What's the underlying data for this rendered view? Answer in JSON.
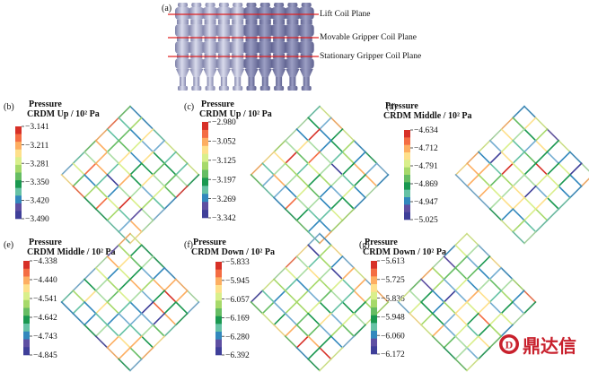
{
  "colors": {
    "grid_stroke": "#555555",
    "coil_plane_line": "#e02020",
    "cylinder_light": "#c9cbe2",
    "cylinder_dark": "#7d80a8",
    "watermark": "#c8202c",
    "colorbar": [
      "#d73027",
      "#f46d43",
      "#fdae61",
      "#fee08b",
      "#d9ef8b",
      "#a6d96a",
      "#66bd63",
      "#1a9850",
      "#66c2a5",
      "#3288bd",
      "#5e4fa2",
      "#3f3f99"
    ]
  },
  "panel_a": {
    "label": "(a)",
    "coil_planes": [
      "Lift Coil Plane",
      "Movable Gripper Coil Plane",
      "Stationary Gripper Coil Plane"
    ]
  },
  "panels": [
    {
      "label": "(b)",
      "title_line1": "Pressure",
      "title_line2": "CRDM Up / 10² Pa",
      "ticks": [
        "−3.141",
        "−3.211",
        "−3.281",
        "−3.350",
        "−3.420",
        "−3.490"
      ]
    },
    {
      "label": "(c)",
      "title_line1": "Pressure",
      "title_line2": "CRDM Up / 10² Pa",
      "ticks": [
        "−2.980",
        "−3.052",
        "−3.125",
        "−3.197",
        "−3.269",
        "−3.342"
      ]
    },
    {
      "label": "(d)",
      "title_line1": "Pressure",
      "title_line2": "CRDM Middle  / 10² Pa",
      "ticks": [
        "−4.634",
        "−4.712",
        "−4.791",
        "−4.869",
        "−4.947",
        "−5.025"
      ]
    },
    {
      "label": "(e)",
      "title_line1": "Pressure",
      "title_line2": "CRDM Middle / 10² Pa",
      "ticks": [
        "−4.338",
        "−4.440",
        "−4.541",
        "−4.642",
        "−4.743",
        "−4.845"
      ]
    },
    {
      "label": "(f)",
      "title_line1": "Pressure",
      "title_line2": "CRDM Down / 10² Pa",
      "ticks": [
        "−5.833",
        "−5.945",
        "−6.057",
        "−6.169",
        "−6.280",
        "−6.392"
      ]
    },
    {
      "label": "(g)",
      "title_line1": "Pressure",
      "title_line2": "CRDM Down / 10² Pa",
      "ticks": [
        "−5.613",
        "−5.725",
        "−5.836",
        "−5.948",
        "−6.060",
        "−6.172"
      ]
    }
  ],
  "watermark": {
    "text": "鼎达信",
    "logo_letter": "D"
  }
}
